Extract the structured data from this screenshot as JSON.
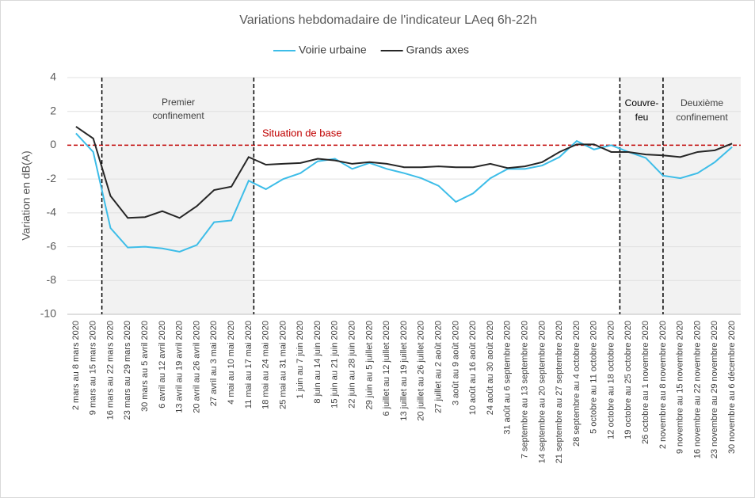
{
  "chart_data": {
    "type": "line",
    "title": "Variations hebdomadaire de l'indicateur LAeq 6h-22h",
    "y_label": "Variation en dB(A)",
    "categories": [
      "2 mars au 8 mars 2020",
      "9 mars au 15 mars 2020",
      "16 mars au 22 mars 2020",
      "23 mars au 29 mars 2020",
      "30 mars au 5 avril 2020",
      "6 avril au 12 avril 2020",
      "13 avril au 19 avril 2020",
      "20 avril au 26 avril 2020",
      "27 avril au 3 mai 2020",
      "4 mai au 10 mai 2020",
      "11 mai au 17 mai 2020",
      "18 mai au 24 mai 2020",
      "25 mai au 31 mai 2020",
      "1 juin au 7 juin 2020",
      "8 juin au 14 juin 2020",
      "15 juin au 21 juin 2020",
      "22 juin au 28 juin 2020",
      "29 juin au 5 juillet 2020",
      "6 juillet au 12 juillet 2020",
      "13 juillet au 19 juillet 2020",
      "20 juillet au 26 juillet 2020",
      "27 juillet au 2 août 2020",
      "3 août au 9 août 2020",
      "10 août au 16 août 2020",
      "24 août au 30 août 2020",
      "31 août au 6 septembre 2020",
      "7 septembre au 13 septembre 2020",
      "14 septembre au 20 septembre 2020",
      "21 septembre au 27 septembre 2020",
      "28 septembre au 4 octobre 2020",
      "5 octobre au 11 octobre 2020",
      "12 octobre au 18 octobre 2020",
      "19 octobre au 25 octobre 2020",
      "26 octobre au 1 novembre 2020",
      "2 novembre au 8 novembre 2020",
      "9 novembre au 15 novembre 2020",
      "16 novembre au 22 novembre 2020",
      "23 novembre au 29 novembre 2020",
      "30 novembre au 6 décembre 2020"
    ],
    "series": [
      {
        "name": "Voirie urbaine",
        "color": "#3dbde8",
        "values": [
          0.7,
          -0.4,
          -4.9,
          -6.05,
          -6.0,
          -6.1,
          -6.3,
          -5.9,
          -4.55,
          -4.45,
          -2.1,
          -2.6,
          -2.0,
          -1.65,
          -0.95,
          -0.8,
          -1.4,
          -1.05,
          -1.4,
          -1.65,
          -1.95,
          -2.4,
          -3.35,
          -2.85,
          -1.95,
          -1.4,
          -1.4,
          -1.2,
          -0.7,
          0.25,
          -0.25,
          0.0,
          -0.4,
          -0.75,
          -1.8,
          -1.95,
          -1.65,
          -1.0,
          -0.1
        ]
      },
      {
        "name": "Grands axes",
        "color": "#262626",
        "values": [
          1.1,
          0.4,
          -3.0,
          -4.3,
          -4.25,
          -3.9,
          -4.3,
          -3.6,
          -2.65,
          -2.45,
          -0.7,
          -1.15,
          -1.1,
          -1.05,
          -0.8,
          -0.9,
          -1.1,
          -1.0,
          -1.1,
          -1.3,
          -1.3,
          -1.25,
          -1.3,
          -1.3,
          -1.1,
          -1.35,
          -1.25,
          -1.0,
          -0.4,
          0.05,
          0.05,
          -0.4,
          -0.4,
          -0.55,
          -0.6,
          -0.7,
          -0.4,
          -0.3,
          0.1
        ]
      }
    ],
    "ylim": [
      -10,
      4
    ],
    "yticks": [
      -10,
      -8,
      -6,
      -4,
      -2,
      0,
      2,
      4
    ],
    "grid": true,
    "legend": "top",
    "annotations": {
      "premier": [
        "Premier",
        "confinement"
      ],
      "base": "Situation de base",
      "couvre": [
        "Couvre-",
        "feu"
      ],
      "deuxieme": [
        "Deuxième",
        "confinement"
      ]
    }
  }
}
